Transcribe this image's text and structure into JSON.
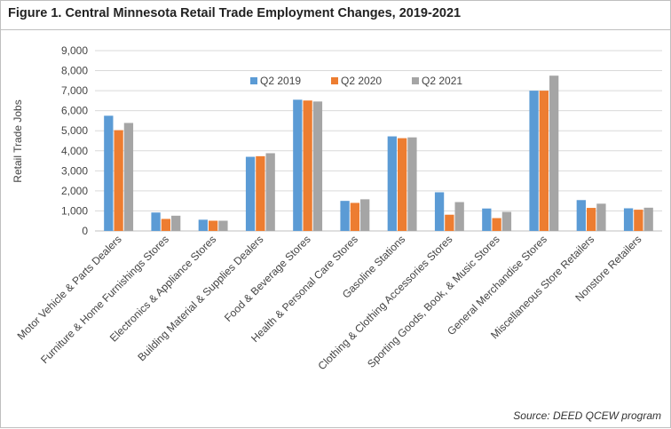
{
  "figure": {
    "title": "Figure 1. Central Minnesota Retail Trade Employment Changes, 2019-2021",
    "source": "Source: DEED QCEW program"
  },
  "chart_data": {
    "type": "bar",
    "title": "Figure 1. Central Minnesota Retail Trade Employment Changes, 2019-2021",
    "xlabel": "",
    "ylabel": "Retail Trade Jobs",
    "ylim": [
      0,
      9000
    ],
    "yticks": [
      0,
      1000,
      2000,
      3000,
      4000,
      5000,
      6000,
      7000,
      8000,
      9000
    ],
    "ytick_labels": [
      "0",
      "1,000",
      "2,000",
      "3,000",
      "4,000",
      "5,000",
      "6,000",
      "7,000",
      "8,000",
      "9,000"
    ],
    "grid": true,
    "legend_position": "top-center",
    "categories": [
      "Motor Vehicle & Parts Dealers",
      "Furniture & Home Furnishings Stores",
      "Electronics & Appliance Stores",
      "Building Material & Supplies Dealers",
      "Food & Beverage Stores",
      "Health & Personal Care Stores",
      "Gasoline Stations",
      "Clothing & Clothing Accessories Stores",
      "Sporting Goods, Book, & Music Stores",
      "General Merchandise Stores",
      "Miscellaneous Store Retailers",
      "Nonstore Retailers"
    ],
    "series": [
      {
        "name": "Q2 2019",
        "color": "#5B9BD5",
        "values": [
          5750,
          920,
          560,
          3700,
          6550,
          1500,
          4720,
          1930,
          1120,
          7000,
          1540,
          1130
        ]
      },
      {
        "name": "Q2 2020",
        "color": "#ED7D31",
        "values": [
          5030,
          600,
          510,
          3730,
          6510,
          1400,
          4630,
          810,
          640,
          7000,
          1150,
          1060
        ]
      },
      {
        "name": "Q2 2021",
        "color": "#A5A5A5",
        "values": [
          5390,
          760,
          510,
          3880,
          6460,
          1580,
          4670,
          1440,
          950,
          7750,
          1360,
          1160
        ]
      }
    ]
  }
}
